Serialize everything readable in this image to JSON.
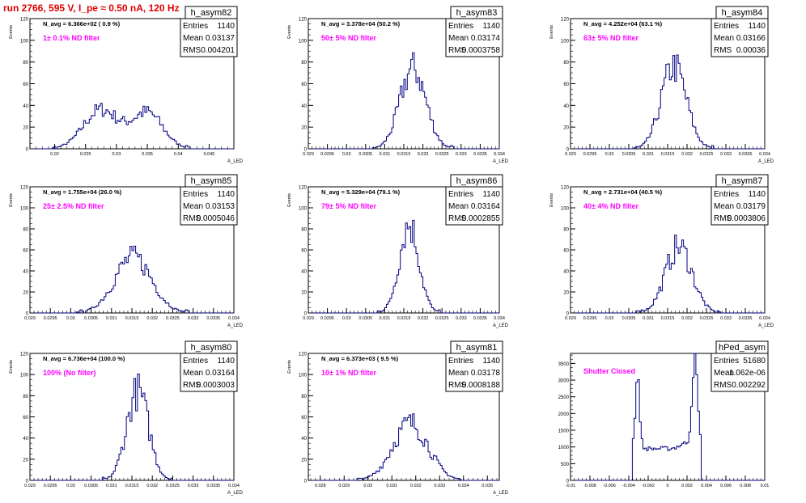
{
  "run_title": "run 2766,   595 V, I_pe ≈ 0.50 nA, 120 Hz",
  "colors": {
    "hist": "#000080",
    "annotation": "#ff00ff",
    "run_title": "#e00000"
  },
  "chart_data": [
    {
      "type": "histogram",
      "name": "h_asym82",
      "ylabel": "Events",
      "xlabel": "A_LED",
      "xlim": [
        0.016,
        0.049
      ],
      "ylim": [
        0,
        120
      ],
      "xticks": [
        "0.02",
        "0.025",
        "0.03",
        "0.035",
        "0.04",
        "0.045"
      ],
      "xtick_values": [
        0.02,
        0.025,
        0.03,
        0.035,
        0.04,
        0.045
      ],
      "yticks": [
        0,
        20,
        40,
        60,
        80,
        100,
        120
      ],
      "navg": "N_avg = 6.366e+02 ( 0.9 %)",
      "filter": "1± 0.1% ND filter",
      "stats": [
        [
          "Entries",
          "1140"
        ],
        [
          "Mean",
          "0.03137"
        ],
        [
          "RMS",
          "0.004201"
        ]
      ],
      "hist": {
        "mean": 0.03137,
        "rms": 0.004201,
        "bimodal": true,
        "peak": 40
      }
    },
    {
      "type": "histogram",
      "name": "h_asym83",
      "ylabel": "Events",
      "xlabel": "A_LED",
      "xlim": [
        0.029,
        0.034
      ],
      "ylim": [
        0,
        120
      ],
      "xticks": [
        "0.029",
        "0.0295",
        "0.03",
        "0.0305",
        "0.031",
        "0.0315",
        "0.032",
        "0.0325",
        "0.033",
        "0.0335",
        "0.034"
      ],
      "xtick_values": [
        0.029,
        0.0295,
        0.03,
        0.0305,
        0.031,
        0.0315,
        0.032,
        0.0325,
        0.033,
        0.0335,
        0.034
      ],
      "yticks": [
        0,
        20,
        40,
        60,
        80,
        100,
        120
      ],
      "navg": "N_avg = 3.378e+04 (50.2 %)",
      "filter": "50± 5% ND filter",
      "stats": [
        [
          "Entries",
          "1140"
        ],
        [
          "Mean",
          "0.03174"
        ],
        [
          "RMS",
          "0.0003758"
        ]
      ],
      "hist": {
        "mean": 0.03174,
        "rms": 0.0003758,
        "peak": 74
      }
    },
    {
      "type": "histogram",
      "name": "h_asym84",
      "ylabel": "Events",
      "xlabel": "A_LED",
      "xlim": [
        0.029,
        0.034
      ],
      "ylim": [
        0,
        120
      ],
      "xticks": [
        "0.029",
        "0.0295",
        "0.03",
        "0.0305",
        "0.031",
        "0.0315",
        "0.032",
        "0.0325",
        "0.033",
        "0.0335",
        "0.034"
      ],
      "xtick_values": [
        0.029,
        0.0295,
        0.03,
        0.0305,
        0.031,
        0.0315,
        0.032,
        0.0325,
        0.033,
        0.0335,
        0.034
      ],
      "yticks": [
        0,
        20,
        40,
        60,
        80,
        100,
        120
      ],
      "navg": "N_avg = 4.252e+04 (63.1 %)",
      "filter": "63± 5% ND filter",
      "stats": [
        [
          "Entries",
          "1140"
        ],
        [
          "Mean",
          "0.03166"
        ],
        [
          "RMS",
          "0.00036"
        ]
      ],
      "hist": {
        "mean": 0.03166,
        "rms": 0.00036,
        "peak": 76
      }
    },
    {
      "type": "histogram",
      "name": "h_asym85",
      "ylabel": "Events",
      "xlabel": "A_LED",
      "xlim": [
        0.029,
        0.034
      ],
      "ylim": [
        0,
        120
      ],
      "xticks": [
        "0.029",
        "0.0295",
        "0.03",
        "0.0305",
        "0.031",
        "0.0315",
        "0.032",
        "0.0325",
        "0.033",
        "0.0335",
        "0.034"
      ],
      "xtick_values": [
        0.029,
        0.0295,
        0.03,
        0.0305,
        0.031,
        0.0315,
        0.032,
        0.0325,
        0.033,
        0.0335,
        0.034
      ],
      "yticks": [
        0,
        20,
        40,
        60,
        80,
        100,
        120
      ],
      "navg": "N_avg = 1.755e+04 (26.0 %)",
      "filter": "25± 2.5% ND filter",
      "stats": [
        [
          "Entries",
          "1140"
        ],
        [
          "Mean",
          "0.03153"
        ],
        [
          "RMS",
          "0.0005046"
        ]
      ],
      "hist": {
        "mean": 0.03153,
        "rms": 0.0005046,
        "peak": 53
      }
    },
    {
      "type": "histogram",
      "name": "h_asym86",
      "ylabel": "Events",
      "xlabel": "A_LED",
      "xlim": [
        0.029,
        0.034
      ],
      "ylim": [
        0,
        120
      ],
      "xticks": [
        "0.029",
        "0.0295",
        "0.03",
        "0.0305",
        "0.031",
        "0.0315",
        "0.032",
        "0.0325",
        "0.033",
        "0.0335",
        "0.034"
      ],
      "xtick_values": [
        0.029,
        0.0295,
        0.03,
        0.0305,
        0.031,
        0.0315,
        0.032,
        0.0325,
        0.033,
        0.0335,
        0.034
      ],
      "yticks": [
        0,
        20,
        40,
        60,
        80,
        100,
        120
      ],
      "navg": "N_avg = 5.329e+04 (79.1 %)",
      "filter": "79± 5% ND filter",
      "stats": [
        [
          "Entries",
          "1140"
        ],
        [
          "Mean",
          "0.03164"
        ],
        [
          "RMS",
          "0.0002855"
        ]
      ],
      "hist": {
        "mean": 0.03164,
        "rms": 0.0002855,
        "peak": 84
      }
    },
    {
      "type": "histogram",
      "name": "h_asym87",
      "ylabel": "Events",
      "xlabel": "A_LED",
      "xlim": [
        0.029,
        0.034
      ],
      "ylim": [
        0,
        120
      ],
      "xticks": [
        "0.029",
        "0.0295",
        "0.03",
        "0.0305",
        "0.031",
        "0.0315",
        "0.032",
        "0.0325",
        "0.033",
        "0.0335",
        "0.034"
      ],
      "xtick_values": [
        0.029,
        0.0295,
        0.03,
        0.0305,
        0.031,
        0.0315,
        0.032,
        0.0325,
        0.033,
        0.0335,
        0.034
      ],
      "yticks": [
        0,
        20,
        40,
        60,
        80,
        100,
        120
      ],
      "navg": "N_avg = 2.731e+04 (40.5 %)",
      "filter": "40± 4% ND filter",
      "stats": [
        [
          "Entries",
          "1140"
        ],
        [
          "Mean",
          "0.03179"
        ],
        [
          "RMS",
          "0.0003806"
        ]
      ],
      "hist": {
        "mean": 0.03179,
        "rms": 0.0003806,
        "peak": 63
      }
    },
    {
      "type": "histogram",
      "name": "h_asym80",
      "ylabel": "Events",
      "xlabel": "A_LED",
      "xlim": [
        0.029,
        0.034
      ],
      "ylim": [
        0,
        120
      ],
      "xticks": [
        "0.029",
        "0.0295",
        "0.03",
        "0.0305",
        "0.031",
        "0.0315",
        "0.032",
        "0.0325",
        "0.033",
        "0.0335",
        "0.034"
      ],
      "xtick_values": [
        0.029,
        0.0295,
        0.03,
        0.0305,
        0.031,
        0.0315,
        0.032,
        0.0325,
        0.033,
        0.0335,
        0.034
      ],
      "yticks": [
        0,
        20,
        40,
        60,
        80,
        100,
        120
      ],
      "navg": "N_avg = 6.736e+04 (100.0 %)",
      "filter": "100% (No filter)",
      "stats": [
        [
          "Entries",
          "1140"
        ],
        [
          "Mean",
          "0.03164"
        ],
        [
          "RMS",
          "0.0003003"
        ]
      ],
      "hist": {
        "mean": 0.03164,
        "rms": 0.0003003,
        "peak": 84
      }
    },
    {
      "type": "histogram",
      "name": "h_asym81",
      "ylabel": "Events",
      "xlabel": "A_LED",
      "xlim": [
        0.0275,
        0.0355
      ],
      "ylim": [
        0,
        120
      ],
      "xticks": [
        "0.028",
        "0.029",
        "0.03",
        "0.031",
        "0.032",
        "0.033",
        "0.034",
        "0.035"
      ],
      "xtick_values": [
        0.028,
        0.029,
        0.03,
        0.031,
        0.032,
        0.033,
        0.034,
        0.035
      ],
      "yticks": [
        0,
        20,
        40,
        60,
        80,
        100,
        120
      ],
      "navg": "N_avg = 6.373e+03 ( 9.5 %)",
      "filter": "10± 1% ND filter",
      "stats": [
        [
          "Entries",
          "1140"
        ],
        [
          "Mean",
          "0.03178"
        ],
        [
          "RMS",
          "0.0008188"
        ]
      ],
      "hist": {
        "mean": 0.03178,
        "rms": 0.0008188,
        "peak": 54
      }
    },
    {
      "type": "histogram",
      "name": "hPed_asym",
      "ylabel": "",
      "xlabel": "",
      "xlim": [
        -0.01,
        0.01
      ],
      "ylim": [
        0,
        3800
      ],
      "xticks": [
        "-0.01",
        "-0.008",
        "-0.006",
        "-0.004",
        "-0.002",
        "0",
        "0.002",
        "0.004",
        "0.006",
        "0.008",
        "0.01"
      ],
      "xtick_values": [
        -0.01,
        -0.008,
        -0.006,
        -0.004,
        -0.002,
        0,
        0.002,
        0.004,
        0.006,
        0.008,
        0.01
      ],
      "yticks": [
        0,
        500,
        1000,
        1500,
        2000,
        2500,
        3000,
        3500
      ],
      "navg": "",
      "filter": "Shutter Closed",
      "stats": [
        [
          "Entries",
          "51680"
        ],
        [
          "Mean",
          "1.062e-06"
        ],
        [
          "RMS",
          "0.002292"
        ]
      ],
      "hist": {
        "pedestal": true,
        "peak": 3650
      }
    }
  ]
}
